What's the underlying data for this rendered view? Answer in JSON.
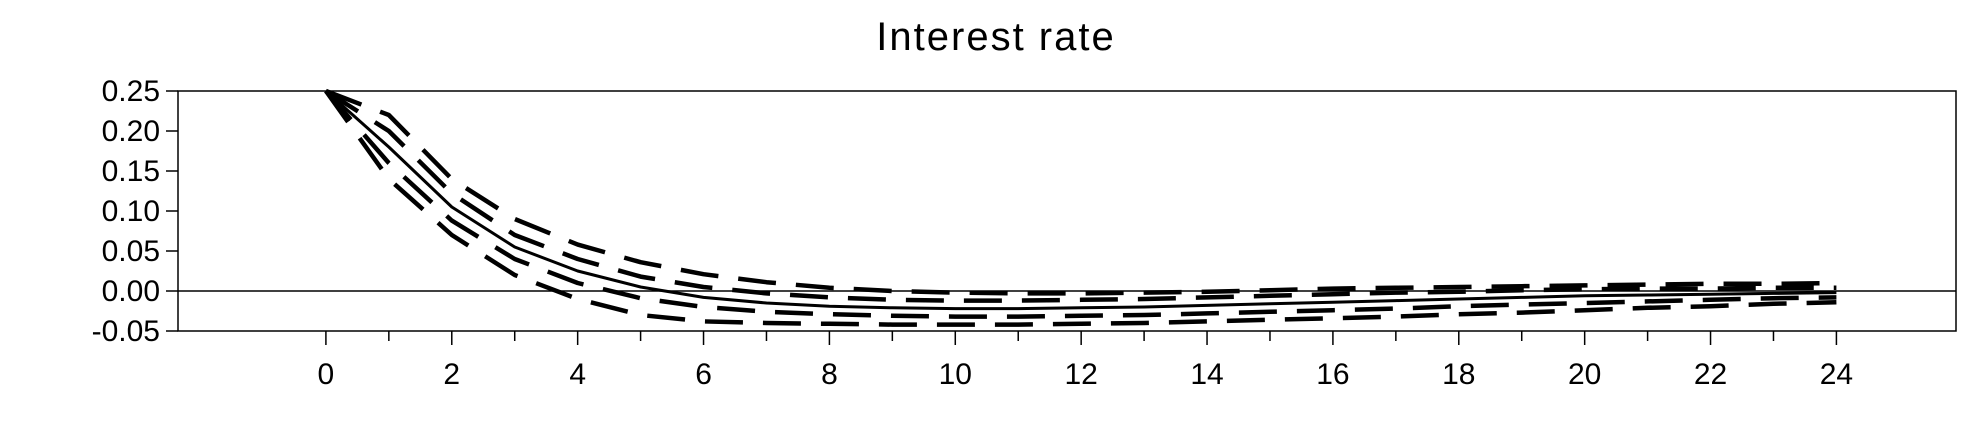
{
  "chart_data": {
    "type": "line",
    "title": "Interest rate",
    "xlabel": "",
    "ylabel": "",
    "xlim": [
      -2.35,
      25.9
    ],
    "ylim": [
      -0.05,
      0.25
    ],
    "x_ticks": [
      0,
      2,
      4,
      6,
      8,
      10,
      12,
      14,
      16,
      18,
      20,
      22,
      24
    ],
    "y_ticks": [
      -0.05,
      0.0,
      0.05,
      0.1,
      0.15,
      0.2,
      0.25
    ],
    "y_tick_labels": [
      "-0.05",
      "0.00",
      "0.05",
      "0.10",
      "0.15",
      "0.20",
      "0.25"
    ],
    "zero_line": true,
    "grid": false,
    "legend": "none",
    "x": [
      0,
      1,
      2,
      3,
      4,
      5,
      6,
      7,
      8,
      9,
      10,
      11,
      12,
      13,
      14,
      15,
      16,
      17,
      18,
      19,
      20,
      21,
      22,
      23,
      24
    ],
    "series": [
      {
        "style": "solid",
        "values": [
          0.25,
          0.18,
          0.105,
          0.055,
          0.025,
          0.005,
          -0.008,
          -0.015,
          -0.019,
          -0.021,
          -0.022,
          -0.022,
          -0.021,
          -0.02,
          -0.018,
          -0.016,
          -0.014,
          -0.012,
          -0.01,
          -0.008,
          -0.006,
          -0.005,
          -0.004,
          -0.003,
          -0.002
        ]
      },
      {
        "style": "dashed",
        "values": [
          0.25,
          0.2,
          0.122,
          0.07,
          0.04,
          0.018,
          0.005,
          -0.003,
          -0.008,
          -0.011,
          -0.012,
          -0.012,
          -0.011,
          -0.01,
          -0.008,
          -0.006,
          -0.004,
          -0.002,
          -0.001,
          0.001,
          0.002,
          0.003,
          0.003,
          0.004,
          0.004
        ]
      },
      {
        "style": "dashed",
        "values": [
          0.25,
          0.16,
          0.088,
          0.04,
          0.01,
          -0.009,
          -0.02,
          -0.026,
          -0.029,
          -0.031,
          -0.032,
          -0.032,
          -0.031,
          -0.03,
          -0.028,
          -0.026,
          -0.024,
          -0.022,
          -0.019,
          -0.017,
          -0.015,
          -0.013,
          -0.011,
          -0.009,
          -0.008
        ]
      },
      {
        "style": "dashed",
        "values": [
          0.25,
          0.22,
          0.14,
          0.09,
          0.058,
          0.036,
          0.021,
          0.011,
          0.004,
          0.0,
          -0.002,
          -0.003,
          -0.003,
          -0.002,
          -0.001,
          0.001,
          0.003,
          0.004,
          0.005,
          0.006,
          0.007,
          0.008,
          0.009,
          0.009,
          0.01
        ]
      },
      {
        "style": "dashed",
        "values": [
          0.25,
          0.14,
          0.07,
          0.02,
          -0.01,
          -0.03,
          -0.038,
          -0.04,
          -0.041,
          -0.042,
          -0.042,
          -0.042,
          -0.041,
          -0.04,
          -0.038,
          -0.036,
          -0.034,
          -0.032,
          -0.029,
          -0.027,
          -0.024,
          -0.021,
          -0.019,
          -0.016,
          -0.014
        ]
      }
    ]
  }
}
